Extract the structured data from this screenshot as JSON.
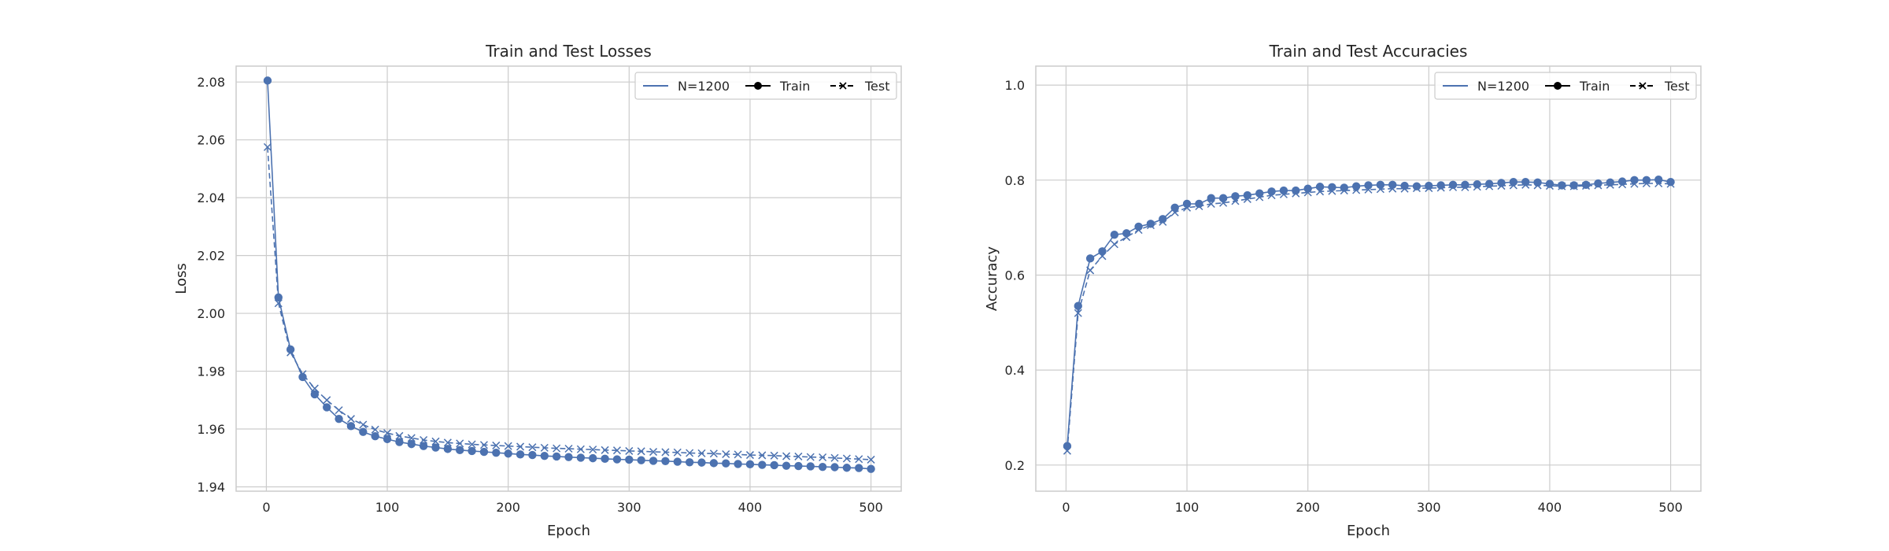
{
  "colors": {
    "series": "#4c72b0",
    "grid": "#cccccc",
    "frame": "#cccccc",
    "text": "#262626",
    "background": "#ffffff"
  },
  "chart_data": [
    {
      "type": "line",
      "title": "Train and Test Losses",
      "xlabel": "Epoch",
      "ylabel": "Loss",
      "xlim": [
        -25,
        525
      ],
      "ylim": [
        1.9385,
        2.0855
      ],
      "xticks": [
        0,
        100,
        200,
        300,
        400,
        500
      ],
      "xtick_labels": [
        "0",
        "100",
        "200",
        "300",
        "400",
        "500"
      ],
      "yticks": [
        1.94,
        1.96,
        1.98,
        2.0,
        2.02,
        2.04,
        2.06,
        2.08
      ],
      "ytick_labels": [
        "1.94",
        "1.96",
        "1.98",
        "2.00",
        "2.02",
        "2.04",
        "2.06",
        "2.08"
      ],
      "grid": true,
      "legend": {
        "placement": "upper-right",
        "entries": [
          "N=1200",
          "Train",
          "Test"
        ]
      },
      "x": [
        1,
        10,
        20,
        30,
        40,
        50,
        60,
        70,
        80,
        90,
        100,
        110,
        120,
        130,
        140,
        150,
        160,
        170,
        180,
        190,
        200,
        210,
        220,
        230,
        240,
        250,
        260,
        270,
        280,
        290,
        300,
        310,
        320,
        330,
        340,
        350,
        360,
        370,
        380,
        390,
        400,
        410,
        420,
        430,
        440,
        450,
        460,
        470,
        480,
        490,
        500
      ],
      "series": [
        {
          "name": "Train",
          "marker": "o",
          "linestyle": "solid",
          "values": [
            2.0805,
            2.0055,
            1.9875,
            1.978,
            1.972,
            1.9675,
            1.9635,
            1.961,
            1.959,
            1.9575,
            1.9565,
            1.9555,
            1.9548,
            1.9541,
            1.9536,
            1.9531,
            1.9527,
            1.9524,
            1.9521,
            1.9518,
            1.9515,
            1.9512,
            1.951,
            1.9507,
            1.9505,
            1.9503,
            1.9501,
            1.9499,
            1.9497,
            1.9495,
            1.9494,
            1.9492,
            1.949,
            1.9489,
            1.9487,
            1.9485,
            1.9484,
            1.9482,
            1.9481,
            1.9479,
            1.9478,
            1.9476,
            1.9475,
            1.9473,
            1.9472,
            1.9471,
            1.9469,
            1.9468,
            1.9466,
            1.9465,
            1.9462
          ]
        },
        {
          "name": "Test",
          "marker": "x",
          "linestyle": "dashed",
          "values": [
            2.0575,
            2.0035,
            1.9865,
            1.979,
            1.974,
            1.97,
            1.9665,
            1.9635,
            1.9615,
            1.9598,
            1.9586,
            1.9576,
            1.9569,
            1.9562,
            1.9557,
            1.9553,
            1.955,
            1.9547,
            1.9545,
            1.9543,
            1.9541,
            1.9539,
            1.9537,
            1.9535,
            1.9533,
            1.9532,
            1.953,
            1.9529,
            1.9527,
            1.9526,
            1.9524,
            1.9523,
            1.9521,
            1.952,
            1.9519,
            1.9517,
            1.9516,
            1.9515,
            1.9513,
            1.9512,
            1.951,
            1.9509,
            1.9508,
            1.9506,
            1.9505,
            1.9503,
            1.9502,
            1.95,
            1.9498,
            1.9496,
            1.9494
          ]
        }
      ]
    },
    {
      "type": "line",
      "title": "Train and Test Accuracies",
      "xlabel": "Epoch",
      "ylabel": "Accuracy",
      "xlim": [
        -25,
        525
      ],
      "ylim": [
        0.145,
        1.04
      ],
      "xticks": [
        0,
        100,
        200,
        300,
        400,
        500
      ],
      "xtick_labels": [
        "0",
        "100",
        "200",
        "300",
        "400",
        "500"
      ],
      "yticks": [
        0.2,
        0.4,
        0.6,
        0.8,
        1.0
      ],
      "ytick_labels": [
        "0.2",
        "0.4",
        "0.6",
        "0.8",
        "1.0"
      ],
      "grid": true,
      "legend": {
        "placement": "upper-right",
        "entries": [
          "N=1200",
          "Train",
          "Test"
        ]
      },
      "x": [
        1,
        10,
        20,
        30,
        40,
        50,
        60,
        70,
        80,
        90,
        100,
        110,
        120,
        130,
        140,
        150,
        160,
        170,
        180,
        190,
        200,
        210,
        220,
        230,
        240,
        250,
        260,
        270,
        280,
        290,
        300,
        310,
        320,
        330,
        340,
        350,
        360,
        370,
        380,
        390,
        400,
        410,
        420,
        430,
        440,
        450,
        460,
        470,
        480,
        490,
        500
      ],
      "series": [
        {
          "name": "Train",
          "marker": "o",
          "linestyle": "solid",
          "values": [
            0.24,
            0.535,
            0.635,
            0.65,
            0.685,
            0.688,
            0.702,
            0.708,
            0.718,
            0.742,
            0.75,
            0.75,
            0.762,
            0.762,
            0.766,
            0.768,
            0.772,
            0.776,
            0.778,
            0.778,
            0.782,
            0.786,
            0.785,
            0.784,
            0.787,
            0.789,
            0.79,
            0.79,
            0.788,
            0.787,
            0.788,
            0.789,
            0.79,
            0.79,
            0.791,
            0.792,
            0.794,
            0.796,
            0.796,
            0.795,
            0.792,
            0.789,
            0.789,
            0.79,
            0.793,
            0.795,
            0.797,
            0.8,
            0.8,
            0.801,
            0.796
          ]
        },
        {
          "name": "Test",
          "marker": "x",
          "linestyle": "dashed",
          "values": [
            0.23,
            0.52,
            0.61,
            0.64,
            0.665,
            0.68,
            0.695,
            0.705,
            0.712,
            0.732,
            0.742,
            0.745,
            0.75,
            0.752,
            0.756,
            0.76,
            0.764,
            0.768,
            0.77,
            0.772,
            0.774,
            0.776,
            0.777,
            0.778,
            0.779,
            0.78,
            0.781,
            0.782,
            0.782,
            0.783,
            0.783,
            0.784,
            0.785,
            0.785,
            0.786,
            0.787,
            0.788,
            0.789,
            0.79,
            0.789,
            0.788,
            0.787,
            0.787,
            0.788,
            0.789,
            0.79,
            0.791,
            0.792,
            0.793,
            0.793,
            0.792
          ]
        }
      ]
    }
  ]
}
